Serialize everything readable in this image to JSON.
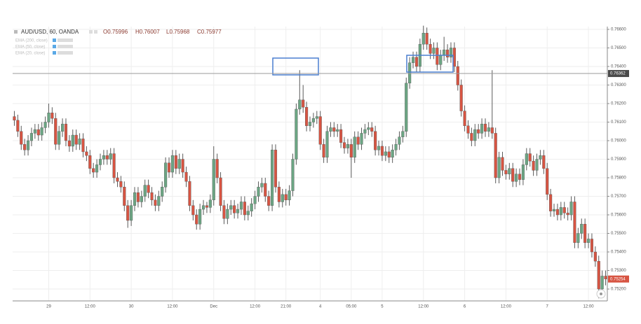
{
  "chart_data": {
    "type": "candlestick",
    "title": "AUD/USD, 60, OANDA",
    "ohlc_labels": [
      "O0.75996",
      "H0.76007",
      "L0.75968",
      "C0.75977"
    ],
    "indicators": [
      "EMA (200, close)",
      "EMA (50, close)",
      "EMA (20, close)"
    ],
    "colors": {
      "up": "#6ba583",
      "down": "#d75442"
    },
    "grid": true,
    "ylim": [
      0.75136,
      0.76615
    ],
    "yticks": [
      {
        "value": 0.752,
        "label": "0.75200"
      },
      {
        "value": 0.753,
        "label": "0.75300"
      },
      {
        "value": 0.754,
        "label": "0.75400"
      },
      {
        "value": 0.755,
        "label": "0.75500"
      },
      {
        "value": 0.756,
        "label": "0.75600"
      },
      {
        "value": 0.757,
        "label": "0.75700"
      },
      {
        "value": 0.758,
        "label": "0.75800"
      },
      {
        "value": 0.759,
        "label": "0.75900"
      },
      {
        "value": 0.76,
        "label": "0.76000"
      },
      {
        "value": 0.761,
        "label": "0.76100"
      },
      {
        "value": 0.762,
        "label": "0.76200"
      },
      {
        "value": 0.763,
        "label": "0.76300"
      },
      {
        "value": 0.764,
        "label": "0.76400"
      },
      {
        "value": 0.765,
        "label": "0.76500"
      },
      {
        "value": 0.766,
        "label": "0.76600"
      }
    ],
    "price_lines": [
      {
        "value": 0.76362,
        "color": "#4a4a4a",
        "line": true
      },
      {
        "value": 0.75254,
        "color": "#d75442",
        "line": false
      }
    ],
    "categories": [
      null,
      null,
      null,
      null,
      null,
      null,
      null,
      null,
      null,
      null,
      "29",
      null,
      null,
      null,
      null,
      null,
      null,
      null,
      null,
      null,
      null,
      null,
      "12:00",
      null,
      null,
      null,
      null,
      null,
      null,
      null,
      null,
      null,
      null,
      null,
      "30",
      null,
      null,
      null,
      null,
      null,
      null,
      null,
      null,
      null,
      null,
      null,
      "12:00",
      null,
      null,
      null,
      null,
      null,
      null,
      null,
      null,
      null,
      null,
      null,
      "Dec",
      null,
      null,
      null,
      null,
      null,
      null,
      null,
      null,
      null,
      null,
      null,
      "12:00",
      null,
      null,
      null,
      null,
      null,
      null,
      null,
      null,
      "21:00",
      null,
      null,
      null,
      null,
      null,
      null,
      null,
      null,
      null,
      "4",
      null,
      null,
      null,
      null,
      null,
      null,
      null,
      null,
      "05:00",
      null,
      null,
      null,
      null,
      null,
      null,
      null,
      null,
      "5",
      null,
      null,
      null,
      null,
      null,
      null,
      null,
      null,
      null,
      null,
      null,
      "12:00",
      null,
      null,
      null,
      null,
      null,
      null,
      null,
      null,
      null,
      null,
      null,
      "6",
      null,
      null,
      null,
      null,
      null,
      null,
      null,
      null,
      null,
      null,
      null,
      "12:00",
      null,
      null,
      null,
      null,
      null,
      null,
      null,
      null,
      null,
      null,
      null,
      "7",
      null,
      null,
      null,
      null,
      null,
      null,
      null,
      null,
      null,
      null,
      null,
      "12:00",
      null,
      null,
      null,
      null,
      null
    ],
    "open": [
      0.7613,
      0.7611,
      0.7605,
      0.7598,
      0.7595,
      0.76,
      0.7604,
      0.7606,
      0.7603,
      0.7607,
      0.761,
      0.7615,
      0.7612,
      0.7598,
      0.7605,
      0.7609,
      0.76,
      0.7597,
      0.7603,
      0.7598,
      0.7601,
      0.7594,
      0.7592,
      0.7585,
      0.7583,
      0.7587,
      0.759,
      0.7592,
      0.759,
      0.7593,
      0.758,
      0.7578,
      0.7575,
      0.7565,
      0.7557,
      0.7565,
      0.7572,
      0.7567,
      0.757,
      0.7576,
      0.7572,
      0.7568,
      0.7565,
      0.757,
      0.7575,
      0.7588,
      0.7583,
      0.7592,
      0.7585,
      0.759,
      0.7583,
      0.7578,
      0.7565,
      0.756,
      0.7555,
      0.7563,
      0.7565,
      0.7564,
      0.7568,
      0.759,
      0.758,
      0.7565,
      0.7558,
      0.7563,
      0.7565,
      0.7561,
      0.7563,
      0.7567,
      0.756,
      0.7562,
      0.7566,
      0.757,
      0.7575,
      0.7577,
      0.757,
      0.7565,
      0.7595,
      0.7575,
      0.7567,
      0.7571,
      0.7568,
      0.7573,
      0.759,
      0.7617,
      0.7622,
      0.7618,
      0.7608,
      0.761,
      0.7612,
      0.7613,
      0.7598,
      0.7591,
      0.7605,
      0.7607,
      0.7605,
      0.7606,
      0.7599,
      0.7596,
      0.7598,
      0.7591,
      0.7602,
      0.7598,
      0.7604,
      0.7606,
      0.7607,
      0.7605,
      0.7595,
      0.7597,
      0.7592,
      0.7594,
      0.7591,
      0.7595,
      0.7598,
      0.7602,
      0.7605,
      0.7631,
      0.7642,
      0.7645,
      0.764,
      0.7652,
      0.7658,
      0.7652,
      0.7647,
      0.765,
      0.7641,
      0.7646,
      0.7649,
      0.7645,
      0.765,
      0.764,
      0.763,
      0.7616,
      0.7608,
      0.7604,
      0.76,
      0.7606,
      0.7604,
      0.7609,
      0.7605,
      0.7607,
      0.7604,
      0.758,
      0.7591,
      0.7584,
      0.7582,
      0.7585,
      0.7578,
      0.7582,
      0.7579,
      0.7587,
      0.7593,
      0.7589,
      0.7584,
      0.759,
      0.7592,
      0.7585,
      0.7571,
      0.7562,
      0.7563,
      0.756,
      0.7564,
      0.7561,
      0.756,
      0.7567,
      0.7545,
      0.755,
      0.7555,
      0.7545,
      0.7547,
      0.754,
      0.7535,
      0.752,
      0.7527
    ],
    "high": [
      0.7616,
      0.7614,
      0.7608,
      0.7601,
      0.7603,
      0.7607,
      0.7609,
      0.7609,
      0.761,
      0.7613,
      0.762,
      0.7618,
      0.7615,
      0.7608,
      0.7612,
      0.7612,
      0.7603,
      0.7606,
      0.7606,
      0.7604,
      0.7604,
      0.7597,
      0.7595,
      0.7588,
      0.759,
      0.7593,
      0.7595,
      0.7595,
      0.7596,
      0.7596,
      0.7583,
      0.7581,
      0.7578,
      0.7568,
      0.7568,
      0.7575,
      0.7575,
      0.7573,
      0.7579,
      0.7579,
      0.7575,
      0.7571,
      0.7573,
      0.7578,
      0.7591,
      0.7591,
      0.7595,
      0.7595,
      0.7593,
      0.7593,
      0.7586,
      0.7581,
      0.7568,
      0.7563,
      0.7566,
      0.7568,
      0.7567,
      0.7571,
      0.7597,
      0.7593,
      0.7583,
      0.7568,
      0.7566,
      0.7568,
      0.7568,
      0.7566,
      0.757,
      0.757,
      0.7565,
      0.7569,
      0.7573,
      0.7578,
      0.758,
      0.758,
      0.7573,
      0.7598,
      0.7598,
      0.7578,
      0.7574,
      0.7574,
      0.7576,
      0.7593,
      0.762,
      0.7638,
      0.763,
      0.7621,
      0.7613,
      0.7615,
      0.7616,
      0.7616,
      0.7601,
      0.7608,
      0.761,
      0.761,
      0.7609,
      0.7609,
      0.7602,
      0.7601,
      0.7601,
      0.7605,
      0.7605,
      0.7607,
      0.7609,
      0.761,
      0.761,
      0.7608,
      0.76,
      0.76,
      0.7597,
      0.7597,
      0.7598,
      0.7601,
      0.7605,
      0.7608,
      0.7634,
      0.7645,
      0.7648,
      0.7648,
      0.7655,
      0.7662,
      0.7661,
      0.7655,
      0.7653,
      0.7653,
      0.7649,
      0.7656,
      0.7652,
      0.7653,
      0.7653,
      0.7643,
      0.7633,
      0.7619,
      0.7611,
      0.7607,
      0.7609,
      0.7609,
      0.7612,
      0.7612,
      0.761,
      0.7638,
      0.7607,
      0.7594,
      0.7594,
      0.7587,
      0.7588,
      0.7588,
      0.7585,
      0.7585,
      0.759,
      0.7596,
      0.7596,
      0.7592,
      0.7593,
      0.7595,
      0.7595,
      0.7588,
      0.7574,
      0.7566,
      0.7566,
      0.7567,
      0.7567,
      0.7564,
      0.757,
      0.757,
      0.7553,
      0.7558,
      0.7558,
      0.755,
      0.755,
      0.7543,
      0.7538,
      0.753,
      0.753
    ],
    "low": [
      0.7608,
      0.7602,
      0.7595,
      0.7592,
      0.7592,
      0.7597,
      0.7601,
      0.76,
      0.76,
      0.7604,
      0.7607,
      0.7609,
      0.7595,
      0.7595,
      0.7602,
      0.7597,
      0.7594,
      0.7594,
      0.7595,
      0.7595,
      0.7591,
      0.7589,
      0.7582,
      0.758,
      0.758,
      0.7584,
      0.7587,
      0.7587,
      0.7587,
      0.7577,
      0.7575,
      0.7572,
      0.7562,
      0.7553,
      0.7554,
      0.7562,
      0.7564,
      0.7564,
      0.7567,
      0.7569,
      0.7565,
      0.7562,
      0.7562,
      0.7567,
      0.7572,
      0.758,
      0.758,
      0.7582,
      0.7582,
      0.758,
      0.7575,
      0.7562,
      0.7557,
      0.7552,
      0.7552,
      0.756,
      0.7561,
      0.7561,
      0.7565,
      0.7577,
      0.7562,
      0.7555,
      0.7555,
      0.756,
      0.7558,
      0.7558,
      0.756,
      0.7557,
      0.7557,
      0.7559,
      0.7563,
      0.7567,
      0.7572,
      0.7567,
      0.7562,
      0.7562,
      0.7572,
      0.7564,
      0.7564,
      0.7565,
      0.7565,
      0.757,
      0.7587,
      0.7614,
      0.7615,
      0.7605,
      0.7605,
      0.7607,
      0.7609,
      0.7595,
      0.7588,
      0.7588,
      0.7602,
      0.7602,
      0.7602,
      0.7596,
      0.7593,
      0.7593,
      0.758,
      0.7588,
      0.7595,
      0.7595,
      0.7601,
      0.7603,
      0.7602,
      0.7592,
      0.7592,
      0.7589,
      0.7589,
      0.7588,
      0.7588,
      0.7592,
      0.7595,
      0.7599,
      0.7602,
      0.7628,
      0.7639,
      0.7637,
      0.7637,
      0.7649,
      0.7649,
      0.7644,
      0.7644,
      0.7638,
      0.7638,
      0.7643,
      0.7642,
      0.7642,
      0.7637,
      0.7627,
      0.7613,
      0.7605,
      0.7601,
      0.7597,
      0.7597,
      0.7601,
      0.7601,
      0.7602,
      0.7602,
      0.7601,
      0.7577,
      0.7577,
      0.7581,
      0.7579,
      0.7579,
      0.7575,
      0.7575,
      0.7576,
      0.7576,
      0.7584,
      0.7586,
      0.7581,
      0.7581,
      0.7587,
      0.7582,
      0.7568,
      0.7559,
      0.7559,
      0.7557,
      0.7557,
      0.7558,
      0.7557,
      0.7557,
      0.7542,
      0.7542,
      0.7547,
      0.7542,
      0.7542,
      0.7537,
      0.7532,
      0.7515,
      0.7517,
      0.7522
    ],
    "close": [
      0.7611,
      0.7605,
      0.7598,
      0.7595,
      0.76,
      0.7604,
      0.7606,
      0.7603,
      0.7607,
      0.761,
      0.7615,
      0.7612,
      0.7598,
      0.7605,
      0.7609,
      0.76,
      0.7597,
      0.7603,
      0.7598,
      0.7601,
      0.7594,
      0.7592,
      0.7585,
      0.7583,
      0.7587,
      0.759,
      0.7592,
      0.759,
      0.7593,
      0.758,
      0.7578,
      0.7575,
      0.7565,
      0.7557,
      0.7565,
      0.7572,
      0.7567,
      0.757,
      0.7576,
      0.7572,
      0.7568,
      0.7565,
      0.757,
      0.7575,
      0.7588,
      0.7583,
      0.7592,
      0.7585,
      0.759,
      0.7583,
      0.7578,
      0.7565,
      0.756,
      0.7555,
      0.7563,
      0.7565,
      0.7564,
      0.7568,
      0.759,
      0.758,
      0.7565,
      0.7558,
      0.7563,
      0.7565,
      0.7561,
      0.7563,
      0.7567,
      0.756,
      0.7562,
      0.7566,
      0.757,
      0.7575,
      0.7577,
      0.757,
      0.7565,
      0.7595,
      0.7575,
      0.7567,
      0.7571,
      0.7568,
      0.7573,
      0.759,
      0.7617,
      0.7622,
      0.7618,
      0.7608,
      0.761,
      0.7612,
      0.7613,
      0.7598,
      0.7591,
      0.7605,
      0.7607,
      0.7605,
      0.7606,
      0.7599,
      0.7596,
      0.7598,
      0.7591,
      0.7602,
      0.7598,
      0.7604,
      0.7606,
      0.7607,
      0.7605,
      0.7595,
      0.7597,
      0.7592,
      0.7594,
      0.7591,
      0.7595,
      0.7598,
      0.7602,
      0.7605,
      0.7631,
      0.7642,
      0.7645,
      0.764,
      0.7652,
      0.7658,
      0.7652,
      0.7647,
      0.765,
      0.7641,
      0.7646,
      0.7649,
      0.7645,
      0.765,
      0.764,
      0.763,
      0.7616,
      0.7608,
      0.7604,
      0.76,
      0.7606,
      0.7604,
      0.7609,
      0.7605,
      0.7607,
      0.7604,
      0.758,
      0.7591,
      0.7584,
      0.7582,
      0.7585,
      0.7578,
      0.7582,
      0.7579,
      0.7587,
      0.7593,
      0.7589,
      0.7584,
      0.759,
      0.7592,
      0.7585,
      0.7571,
      0.7562,
      0.7563,
      0.756,
      0.7564,
      0.7561,
      0.756,
      0.7567,
      0.7545,
      0.755,
      0.7555,
      0.7545,
      0.7547,
      0.754,
      0.7535,
      0.752,
      0.7527,
      0.75254
    ]
  }
}
